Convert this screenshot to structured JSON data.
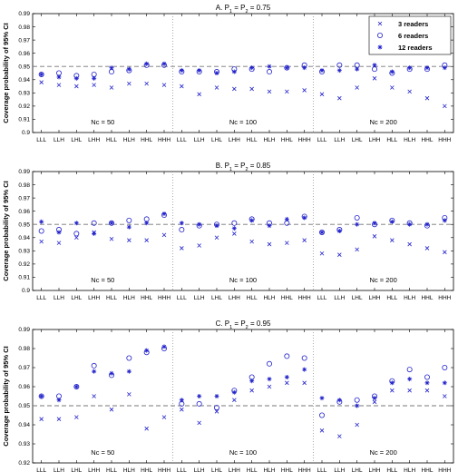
{
  "chart_data": [
    {
      "type": "scatter",
      "title": "A. P1 = P2 = 0.75",
      "ylabel": "Coverage probability of 95% CI",
      "ylim": [
        0.9,
        0.99
      ],
      "yticks": [
        "0.9",
        "0.91",
        "0.92",
        "0.93",
        "0.94",
        "0.95",
        "0.96",
        "0.97",
        "0.98",
        "0.99"
      ],
      "reference_line": 0.95,
      "categories": [
        "LLL",
        "LLH",
        "LHL",
        "LHH",
        "HLL",
        "HLH",
        "HHL",
        "HHH"
      ],
      "groups": [
        "Nc = 50",
        "Nc = 100",
        "Nc = 200"
      ],
      "legend": {
        "position": "top-right",
        "entries": [
          "3 readers",
          "6 readers",
          "12 readers"
        ]
      },
      "series": [
        {
          "name": "3 readers",
          "marker": "x",
          "values": [
            0.938,
            0.936,
            0.935,
            0.936,
            0.934,
            0.937,
            0.937,
            0.936,
            0.935,
            0.929,
            0.934,
            0.933,
            0.933,
            0.931,
            0.931,
            0.932,
            0.929,
            0.926,
            0.934,
            0.941,
            0.934,
            0.931,
            0.926,
            0.92
          ]
        },
        {
          "name": "6 readers",
          "marker": "o",
          "values": [
            0.944,
            0.945,
            0.943,
            0.944,
            0.946,
            0.947,
            0.951,
            0.951,
            0.946,
            0.946,
            0.946,
            0.948,
            0.948,
            0.946,
            0.949,
            0.951,
            0.946,
            0.951,
            0.951,
            0.948,
            0.945,
            0.948,
            0.948,
            0.951
          ]
        },
        {
          "name": "12 readers",
          "marker": "*",
          "values": [
            0.944,
            0.942,
            0.941,
            0.941,
            0.949,
            0.948,
            0.952,
            0.952,
            0.947,
            0.947,
            0.945,
            0.946,
            0.949,
            0.95,
            0.949,
            0.949,
            0.947,
            0.947,
            0.948,
            0.951,
            0.946,
            0.949,
            0.949,
            0.949
          ]
        }
      ]
    },
    {
      "type": "scatter",
      "title": "B. P1 = P2 = 0.85",
      "ylabel": "Coverage probability of 95% CI",
      "ylim": [
        0.9,
        0.99
      ],
      "yticks": [
        "0.9",
        "0.91",
        "0.92",
        "0.93",
        "0.94",
        "0.95",
        "0.96",
        "0.97",
        "0.98",
        "0.99"
      ],
      "reference_line": 0.95,
      "categories": [
        "LLL",
        "LLH",
        "LHL",
        "LHH",
        "HLL",
        "HLH",
        "HHL",
        "HHH"
      ],
      "groups": [
        "Nc = 50",
        "Nc = 100",
        "Nc = 200"
      ],
      "series": [
        {
          "name": "3 readers",
          "marker": "x",
          "values": [
            0.937,
            0.936,
            0.94,
            0.944,
            0.939,
            0.938,
            0.938,
            0.942,
            0.932,
            0.934,
            0.94,
            0.943,
            0.937,
            0.935,
            0.936,
            0.938,
            0.928,
            0.927,
            0.931,
            0.941,
            0.938,
            0.935,
            0.932,
            0.929
          ]
        },
        {
          "name": "6 readers",
          "marker": "o",
          "values": [
            0.945,
            0.946,
            0.943,
            0.951,
            0.951,
            0.953,
            0.954,
            0.957,
            0.946,
            0.949,
            0.95,
            0.951,
            0.954,
            0.951,
            0.951,
            0.956,
            0.944,
            0.946,
            0.955,
            0.95,
            0.953,
            0.951,
            0.949,
            0.955
          ]
        },
        {
          "name": "12 readers",
          "marker": "*",
          "values": [
            0.952,
            0.944,
            0.951,
            0.943,
            0.951,
            0.948,
            0.951,
            0.958,
            0.951,
            0.95,
            0.949,
            0.947,
            0.953,
            0.949,
            0.954,
            0.955,
            0.944,
            0.945,
            0.95,
            0.951,
            0.952,
            0.95,
            0.95,
            0.953
          ]
        }
      ]
    },
    {
      "type": "scatter",
      "title": "C. P1 = P2 = 0.95",
      "ylabel": "Coverage probability of 95% CI",
      "ylim": [
        0.92,
        0.99
      ],
      "yticks": [
        "0.92",
        "0.93",
        "0.94",
        "0.95",
        "0.96",
        "0.97",
        "0.98",
        "0.99"
      ],
      "reference_line": 0.95,
      "categories": [
        "LLL",
        "LLH",
        "LHL",
        "LHH",
        "HLL",
        "HLH",
        "HHL",
        "HHH"
      ],
      "groups": [
        "Nc = 50",
        "Nc = 100",
        "Nc = 200"
      ],
      "series": [
        {
          "name": "3 readers",
          "marker": "x",
          "values": [
            0.943,
            0.943,
            0.944,
            0.955,
            0.948,
            0.956,
            0.938,
            0.944,
            0.948,
            0.941,
            0.947,
            0.953,
            0.958,
            0.96,
            0.962,
            0.962,
            0.937,
            0.934,
            0.94,
            0.952,
            0.958,
            0.958,
            0.958,
            0.955
          ]
        },
        {
          "name": "6 readers",
          "marker": "o",
          "values": [
            0.955,
            0.955,
            0.96,
            0.971,
            0.966,
            0.975,
            0.978,
            0.98,
            0.951,
            0.951,
            0.949,
            0.958,
            0.965,
            0.972,
            0.976,
            0.975,
            0.945,
            0.952,
            0.953,
            0.955,
            0.963,
            0.969,
            0.965,
            0.97
          ]
        },
        {
          "name": "12 readers",
          "marker": "*",
          "values": [
            0.955,
            0.953,
            0.96,
            0.968,
            0.967,
            0.968,
            0.979,
            0.981,
            0.953,
            0.955,
            0.955,
            0.957,
            0.963,
            0.964,
            0.965,
            0.969,
            0.954,
            0.953,
            0.95,
            0.954,
            0.962,
            0.964,
            0.962,
            0.962
          ]
        }
      ]
    }
  ]
}
